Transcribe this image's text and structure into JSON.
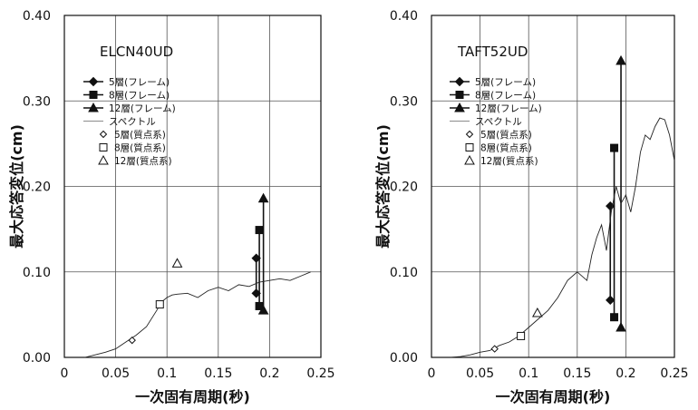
{
  "chart_data": [
    {
      "type": "line",
      "title": "ELCN40UD",
      "xlabel": "一次固有周期(秒)",
      "ylabel": "最大応答変位(cm)",
      "xlim": [
        0,
        0.25
      ],
      "ylim": [
        0,
        0.4
      ],
      "xticks": [
        "0",
        "0.05",
        "0.1",
        "0.15",
        "0.2",
        "0.25"
      ],
      "yticks": [
        "0.00",
        "0.10",
        "0.20",
        "0.30",
        "0.40"
      ],
      "grid": true,
      "legend": {
        "position": "top-left",
        "entries": [
          "5層(フレーム)",
          "8層(フレーム)",
          "12層(フレーム)",
          "スペクトル",
          "5層(質点系)",
          "8層(質点系)",
          "12層(質点系)"
        ]
      },
      "series": [
        {
          "name": "5層(フレーム)",
          "marker": "diamond",
          "points": [
            [
              0.187,
              0.116
            ],
            [
              0.187,
              0.075
            ]
          ]
        },
        {
          "name": "8層(フレーム)",
          "marker": "square",
          "points": [
            [
              0.19,
              0.149
            ],
            [
              0.19,
              0.06
            ]
          ]
        },
        {
          "name": "12層(フレーム)",
          "marker": "triangle",
          "points": [
            [
              0.194,
              0.186
            ],
            [
              0.194,
              0.055
            ]
          ]
        },
        {
          "name": "スペクトル",
          "points": [
            [
              0.02,
              0.0
            ],
            [
              0.03,
              0.003
            ],
            [
              0.04,
              0.006
            ],
            [
              0.05,
              0.01
            ],
            [
              0.06,
              0.018
            ],
            [
              0.07,
              0.026
            ],
            [
              0.08,
              0.036
            ],
            [
              0.09,
              0.055
            ],
            [
              0.095,
              0.065
            ],
            [
              0.1,
              0.07
            ],
            [
              0.105,
              0.073
            ],
            [
              0.11,
              0.074
            ],
            [
              0.12,
              0.075
            ],
            [
              0.13,
              0.07
            ],
            [
              0.14,
              0.078
            ],
            [
              0.15,
              0.082
            ],
            [
              0.16,
              0.078
            ],
            [
              0.17,
              0.085
            ],
            [
              0.18,
              0.083
            ],
            [
              0.19,
              0.088
            ],
            [
              0.2,
              0.09
            ],
            [
              0.21,
              0.092
            ],
            [
              0.22,
              0.09
            ],
            [
              0.23,
              0.095
            ],
            [
              0.24,
              0.1
            ]
          ]
        },
        {
          "name": "5層(質点系)",
          "marker": "open-diamond",
          "points": [
            [
              0.066,
              0.02
            ]
          ]
        },
        {
          "name": "8層(質点系)",
          "marker": "open-square",
          "points": [
            [
              0.093,
              0.062
            ]
          ]
        },
        {
          "name": "12層(質点系)",
          "marker": "open-triangle",
          "points": [
            [
              0.11,
              0.11
            ]
          ]
        }
      ]
    },
    {
      "type": "line",
      "title": "TAFT52UD",
      "xlabel": "一次固有周期(秒)",
      "ylabel": "最大応答変位(cm)",
      "xlim": [
        0,
        0.25
      ],
      "ylim": [
        0,
        0.4
      ],
      "xticks": [
        "0",
        "0.05",
        "0.1",
        "0.15",
        "0.2",
        "0.25"
      ],
      "yticks": [
        "0.00",
        "0.10",
        "0.20",
        "0.30",
        "0.40"
      ],
      "grid": true,
      "legend": {
        "position": "top-left",
        "entries": [
          "5層(フレーム)",
          "8層(フレーム)",
          "12層(フレーム)",
          "スペクトル",
          "5層(質点系)",
          "8層(質点系)",
          "12層(質点系)"
        ]
      },
      "series": [
        {
          "name": "5層(フレーム)",
          "marker": "diamond",
          "points": [
            [
              0.184,
              0.177
            ],
            [
              0.184,
              0.067
            ]
          ]
        },
        {
          "name": "8層(フレーム)",
          "marker": "square",
          "points": [
            [
              0.188,
              0.245
            ],
            [
              0.188,
              0.047
            ]
          ]
        },
        {
          "name": "12層(フレーム)",
          "marker": "triangle",
          "points": [
            [
              0.195,
              0.347
            ],
            [
              0.195,
              0.035
            ]
          ]
        },
        {
          "name": "スペクトル",
          "points": [
            [
              0.02,
              0.0
            ],
            [
              0.03,
              0.001
            ],
            [
              0.04,
              0.003
            ],
            [
              0.05,
              0.006
            ],
            [
              0.06,
              0.008
            ],
            [
              0.07,
              0.014
            ],
            [
              0.08,
              0.018
            ],
            [
              0.09,
              0.025
            ],
            [
              0.1,
              0.035
            ],
            [
              0.11,
              0.045
            ],
            [
              0.12,
              0.055
            ],
            [
              0.13,
              0.07
            ],
            [
              0.14,
              0.09
            ],
            [
              0.15,
              0.1
            ],
            [
              0.16,
              0.09
            ],
            [
              0.165,
              0.12
            ],
            [
              0.17,
              0.14
            ],
            [
              0.175,
              0.155
            ],
            [
              0.18,
              0.125
            ],
            [
              0.185,
              0.17
            ],
            [
              0.19,
              0.2
            ],
            [
              0.195,
              0.18
            ],
            [
              0.2,
              0.19
            ],
            [
              0.205,
              0.17
            ],
            [
              0.21,
              0.2
            ],
            [
              0.215,
              0.24
            ],
            [
              0.22,
              0.26
            ],
            [
              0.225,
              0.255
            ],
            [
              0.23,
              0.27
            ],
            [
              0.235,
              0.28
            ],
            [
              0.24,
              0.278
            ],
            [
              0.245,
              0.26
            ],
            [
              0.25,
              0.23
            ]
          ]
        },
        {
          "name": "5層(質点系)",
          "marker": "open-diamond",
          "points": [
            [
              0.065,
              0.01
            ]
          ]
        },
        {
          "name": "8層(質点系)",
          "marker": "open-square",
          "points": [
            [
              0.092,
              0.025
            ]
          ]
        },
        {
          "name": "12層(質点系)",
          "marker": "open-triangle",
          "points": [
            [
              0.109,
              0.052
            ]
          ]
        }
      ]
    }
  ]
}
